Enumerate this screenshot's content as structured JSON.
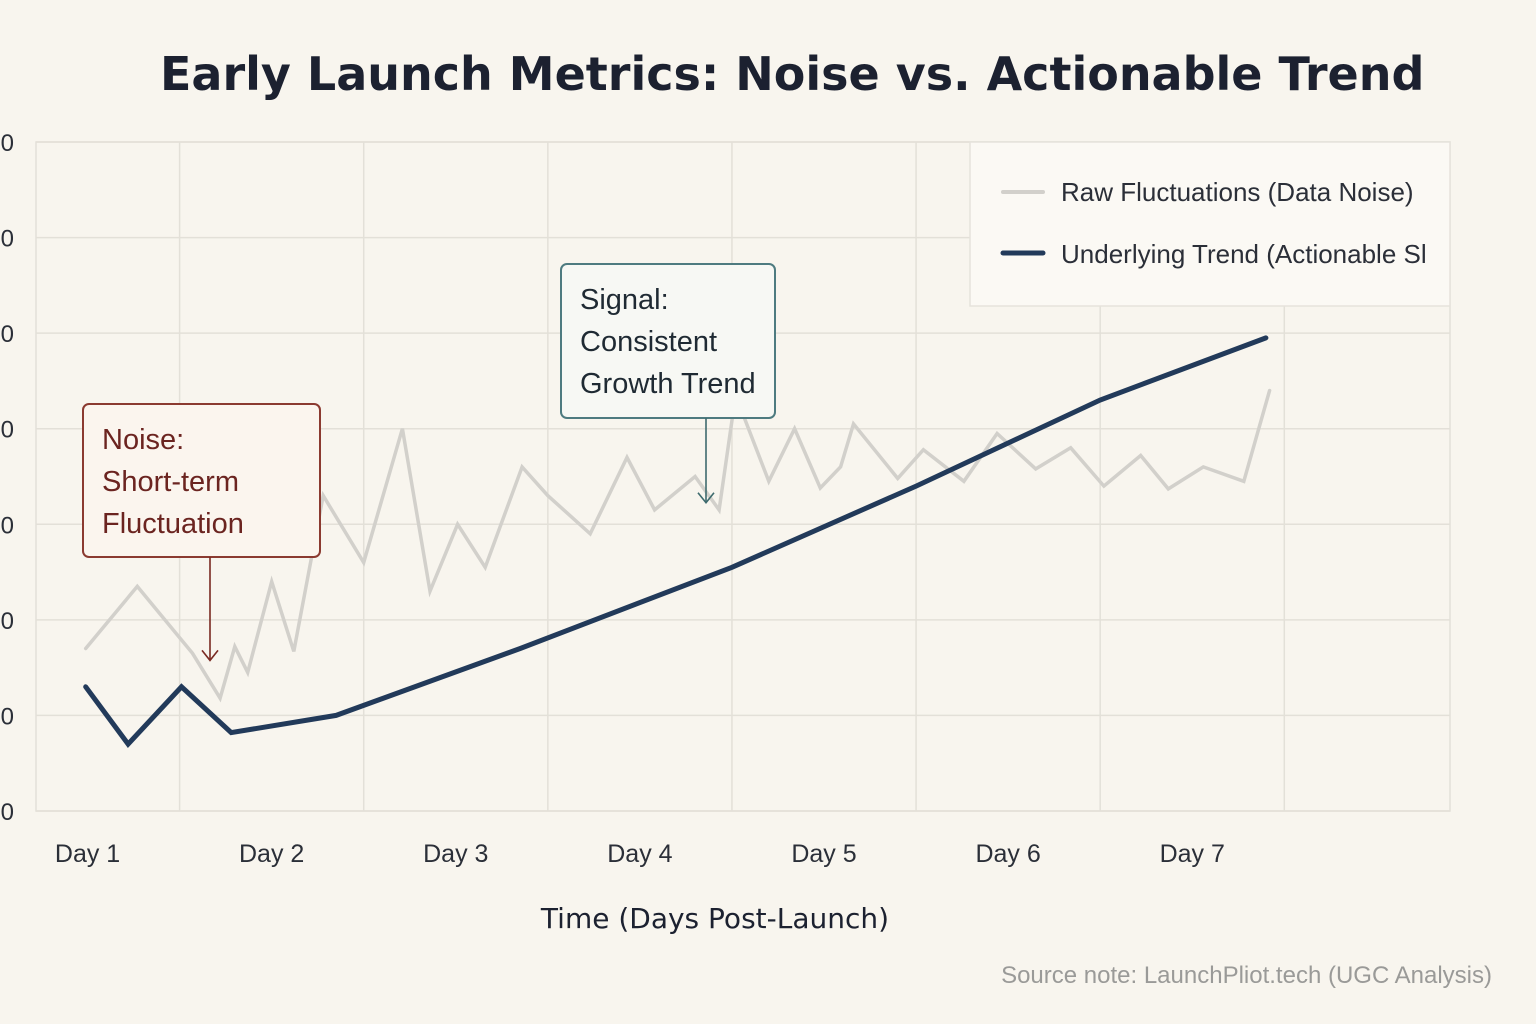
{
  "chart_data": {
    "type": "line",
    "title": "Early Launch Metrics: Noise vs. Actionable Trend",
    "xlabel": "Time (Days Post-Launch)",
    "ylabel": "",
    "categories": [
      "Day 1",
      "Day 2",
      "Day 3",
      "Day 4",
      "Day 5",
      "Day 6",
      "Day 7"
    ],
    "xlim": [
      0.72,
      8.4
    ],
    "ylim": [
      0,
      7
    ],
    "ytick_labels": [
      "0",
      "0",
      "0",
      "0",
      "0",
      "0",
      "0",
      "0"
    ],
    "grid": true,
    "legend_position": "top-right",
    "series": [
      {
        "name": "Raw Fluctuations (Data Noise)",
        "color": "#d2d0cb",
        "x": [
          0.99,
          1.27,
          1.57,
          1.72,
          1.8,
          1.87,
          2.0,
          2.12,
          2.28,
          2.5,
          2.71,
          2.86,
          3.01,
          3.16,
          3.36,
          3.5,
          3.73,
          3.93,
          4.08,
          4.3,
          4.43,
          4.52,
          4.7,
          4.84,
          4.98,
          5.09,
          5.16,
          5.4,
          5.54,
          5.76,
          5.94,
          6.15,
          6.34,
          6.52,
          6.72,
          6.87,
          7.06,
          7.28,
          7.42
        ],
        "y": [
          1.7,
          2.35,
          1.65,
          1.18,
          1.72,
          1.45,
          2.4,
          1.67,
          3.3,
          2.6,
          4.0,
          2.3,
          3.0,
          2.55,
          3.6,
          3.3,
          2.9,
          3.7,
          3.15,
          3.5,
          3.15,
          4.35,
          3.45,
          4.0,
          3.38,
          3.6,
          4.05,
          3.48,
          3.78,
          3.45,
          3.95,
          3.58,
          3.8,
          3.4,
          3.72,
          3.37,
          3.6,
          3.45,
          4.4
        ]
      },
      {
        "name": "Underlying Trend (Actionable Sl",
        "color": "#223a5a",
        "x": [
          0.99,
          1.22,
          1.51,
          1.78,
          2.35,
          3.35,
          4.5,
          5.5,
          6.5,
          7.4
        ],
        "y": [
          1.3,
          0.7,
          1.3,
          0.82,
          1.0,
          1.7,
          2.55,
          3.4,
          4.3,
          4.95
        ]
      }
    ],
    "annotations": [
      {
        "label_lines": [
          "Noise:",
          "Short-term",
          "Fluctuation"
        ],
        "color": "#7a2a22",
        "target_x": 1.7,
        "target_y": 1.45
      },
      {
        "label_lines": [
          "Signal:",
          "Consistent",
          "Growth Trend"
        ],
        "color": "#3e6b6e",
        "target_x": 4.4,
        "target_y": 3.1
      }
    ],
    "source_note": "Source note: LaunchPliot.tech (UGC Analysis)"
  }
}
